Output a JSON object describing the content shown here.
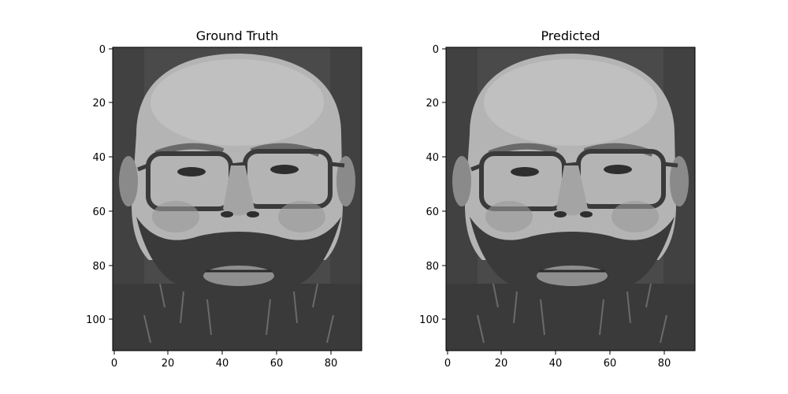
{
  "figure": {
    "panels": [
      {
        "title": "Ground Truth",
        "x_ticks": [
          "0",
          "20",
          "40",
          "60",
          "80"
        ],
        "y_ticks": [
          "0",
          "20",
          "40",
          "60",
          "80",
          "100"
        ],
        "image_content": "grayscale face"
      },
      {
        "title": "Predicted",
        "x_ticks": [
          "0",
          "20",
          "40",
          "60",
          "80"
        ],
        "y_ticks": [
          "0",
          "20",
          "40",
          "60",
          "80",
          "100"
        ],
        "image_content": "grayscale face"
      }
    ],
    "colors": {
      "background": "#ffffff",
      "axis": "#000000"
    }
  }
}
